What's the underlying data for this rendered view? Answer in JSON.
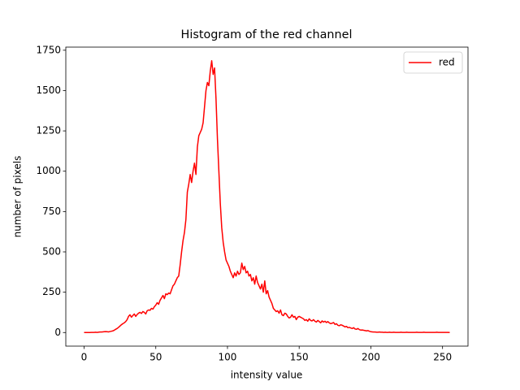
{
  "chart_data": {
    "type": "line",
    "title": "Histogram of the red channel",
    "x_label": "intensity value",
    "y_label": "number of pixels",
    "x": [
      0,
      1,
      2,
      3,
      4,
      5,
      6,
      7,
      8,
      9,
      10,
      11,
      12,
      13,
      14,
      15,
      16,
      17,
      18,
      19,
      20,
      21,
      22,
      23,
      24,
      25,
      26,
      27,
      28,
      29,
      30,
      31,
      32,
      33,
      34,
      35,
      36,
      37,
      38,
      39,
      40,
      41,
      42,
      43,
      44,
      45,
      46,
      47,
      48,
      49,
      50,
      51,
      52,
      53,
      54,
      55,
      56,
      57,
      58,
      59,
      60,
      61,
      62,
      63,
      64,
      65,
      66,
      67,
      68,
      69,
      70,
      71,
      72,
      73,
      74,
      75,
      76,
      77,
      78,
      79,
      80,
      81,
      82,
      83,
      84,
      85,
      86,
      87,
      88,
      89,
      90,
      91,
      92,
      93,
      94,
      95,
      96,
      97,
      98,
      99,
      100,
      101,
      102,
      103,
      104,
      105,
      106,
      107,
      108,
      109,
      110,
      111,
      112,
      113,
      114,
      115,
      116,
      117,
      118,
      119,
      120,
      121,
      122,
      123,
      124,
      125,
      126,
      127,
      128,
      129,
      130,
      131,
      132,
      133,
      134,
      135,
      136,
      137,
      138,
      139,
      140,
      141,
      142,
      143,
      144,
      145,
      146,
      147,
      148,
      149,
      150,
      151,
      152,
      153,
      154,
      155,
      156,
      157,
      158,
      159,
      160,
      161,
      162,
      163,
      164,
      165,
      166,
      167,
      168,
      169,
      170,
      171,
      172,
      173,
      174,
      175,
      176,
      177,
      178,
      179,
      180,
      181,
      182,
      183,
      184,
      185,
      186,
      187,
      188,
      189,
      190,
      191,
      192,
      193,
      194,
      195,
      196,
      197,
      198,
      199,
      200,
      201,
      202,
      203,
      204,
      205,
      206,
      207,
      208,
      209,
      210,
      211,
      212,
      213,
      214,
      215,
      216,
      217,
      218,
      219,
      220,
      221,
      222,
      223,
      224,
      225,
      226,
      227,
      228,
      229,
      230,
      231,
      232,
      233,
      234,
      235,
      236,
      237,
      238,
      239,
      240,
      241,
      242,
      243,
      244,
      245,
      246,
      247,
      248,
      249,
      250,
      251,
      252,
      253,
      254,
      255
    ],
    "series": [
      {
        "name": "red",
        "color": "#ff0000",
        "values": [
          0,
          0,
          0,
          0,
          0,
          1,
          1,
          1,
          2,
          1,
          2,
          3,
          3,
          4,
          5,
          6,
          5,
          4,
          6,
          8,
          10,
          14,
          20,
          25,
          32,
          40,
          48,
          55,
          60,
          68,
          80,
          100,
          110,
          95,
          105,
          115,
          100,
          112,
          120,
          125,
          118,
          130,
          125,
          115,
          135,
          140,
          138,
          150,
          145,
          160,
          170,
          185,
          175,
          200,
          215,
          230,
          210,
          240,
          235,
          245,
          240,
          265,
          290,
          300,
          320,
          340,
          350,
          420,
          500,
          570,
          620,
          700,
          870,
          920,
          980,
          930,
          1000,
          1050,
          980,
          1150,
          1220,
          1240,
          1260,
          1300,
          1400,
          1500,
          1550,
          1530,
          1620,
          1685,
          1600,
          1640,
          1450,
          1200,
          1000,
          800,
          650,
          560,
          500,
          450,
          430,
          410,
          380,
          360,
          340,
          370,
          350,
          380,
          360,
          370,
          430,
          390,
          410,
          370,
          380,
          350,
          360,
          320,
          340,
          300,
          350,
          310,
          290,
          270,
          300,
          250,
          320,
          240,
          260,
          220,
          200,
          180,
          150,
          140,
          130,
          135,
          120,
          140,
          110,
          105,
          120,
          115,
          100,
          90,
          95,
          110,
          95,
          100,
          80,
          95,
          100,
          95,
          90,
          85,
          75,
          80,
          70,
          85,
          75,
          72,
          80,
          70,
          65,
          75,
          68,
          60,
          72,
          65,
          70,
          62,
          68,
          60,
          55,
          58,
          62,
          50,
          55,
          45,
          42,
          48,
          45,
          40,
          35,
          38,
          30,
          32,
          28,
          25,
          30,
          22,
          20,
          25,
          18,
          15,
          16,
          14,
          12,
          10,
          12,
          8,
          5,
          4,
          3,
          3,
          2,
          2,
          3,
          2,
          2,
          1,
          2,
          1,
          1,
          2,
          1,
          1,
          2,
          1,
          1,
          1,
          1,
          2,
          1,
          1,
          1,
          2,
          1,
          1,
          1,
          1,
          1,
          1,
          2,
          1,
          1,
          1,
          1,
          2,
          1,
          1,
          1,
          1,
          1,
          1,
          1,
          1,
          2,
          1,
          1,
          1,
          1,
          1,
          1,
          1,
          1,
          0
        ]
      }
    ],
    "xlim": [
      -12.75,
      267.75
    ],
    "ylim": [
      -84.25,
      1769.25
    ],
    "xticks": [
      0,
      50,
      100,
      150,
      200,
      250
    ],
    "yticks": [
      0,
      250,
      500,
      750,
      1000,
      1250,
      1500,
      1750
    ],
    "legend": "upper right"
  }
}
